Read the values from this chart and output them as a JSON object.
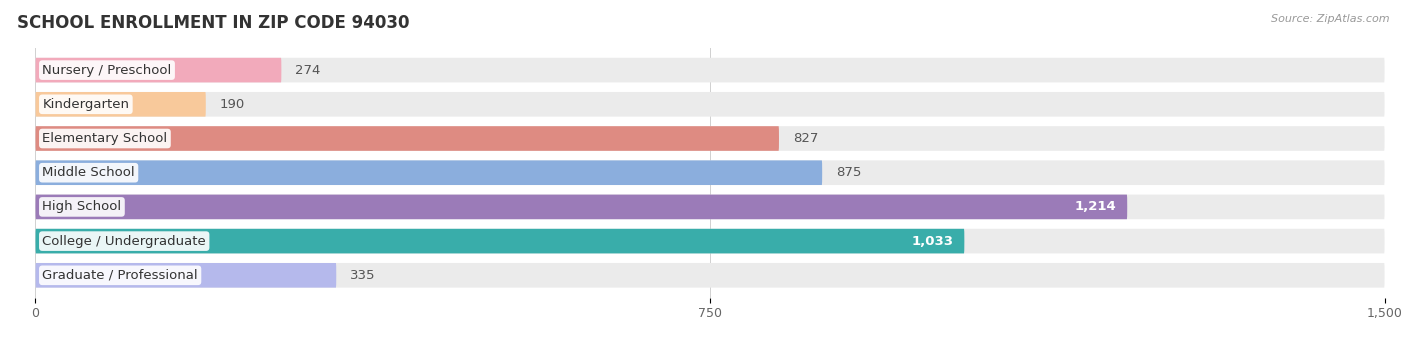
{
  "title": "SCHOOL ENROLLMENT IN ZIP CODE 94030",
  "source_text": "Source: ZipAtlas.com",
  "categories": [
    "Nursery / Preschool",
    "Kindergarten",
    "Elementary School",
    "Middle School",
    "High School",
    "College / Undergraduate",
    "Graduate / Professional"
  ],
  "values": [
    274,
    190,
    827,
    875,
    1214,
    1033,
    335
  ],
  "bar_colors": [
    "#F2AABB",
    "#F8C99B",
    "#DE8B82",
    "#8BAEDD",
    "#9B7BB8",
    "#39ADAA",
    "#B5B9EC"
  ],
  "bar_bg_color": "#EBEBEB",
  "xlim_max": 1500,
  "xticks": [
    0,
    750,
    1500
  ],
  "value_label_color_dark": "#555555",
  "value_label_color_light": "#ffffff",
  "title_fontsize": 12,
  "label_fontsize": 9.5,
  "value_fontsize": 9.5,
  "background_color": "#ffffff",
  "bar_height": 0.72,
  "bar_gap": 0.28
}
